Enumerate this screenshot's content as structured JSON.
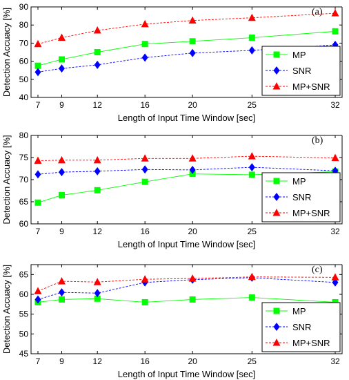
{
  "colors": {
    "MP": "#00ff00",
    "SNR": "#0000ff",
    "MP+SNR": "#ff0000"
  },
  "chart_data": [
    {
      "type": "line",
      "panel_label": "(a)",
      "xlabel": "Length of Input Time Window [sec]",
      "ylabel": "Detection Accuacy [%]",
      "x": [
        7,
        9,
        12,
        16,
        20,
        25,
        32
      ],
      "xticks": [
        7,
        9,
        12,
        16,
        20,
        25,
        32
      ],
      "ylim": [
        40,
        90
      ],
      "yticks": [
        40,
        50,
        60,
        70,
        80,
        90
      ],
      "legend_position": "bottom-right",
      "series": [
        {
          "name": "MP",
          "marker": "square",
          "values": [
            57.5,
            61,
            65,
            69.5,
            71,
            73,
            76.5
          ]
        },
        {
          "name": "SNR",
          "marker": "diamond",
          "values": [
            54,
            56,
            58,
            62,
            64.5,
            66,
            69
          ]
        },
        {
          "name": "MP+SNR",
          "marker": "triangle",
          "values": [
            69.5,
            73,
            77,
            80.5,
            82.5,
            84,
            86.5
          ]
        }
      ]
    },
    {
      "type": "line",
      "panel_label": "(b)",
      "xlabel": "Length of Input Time Window [sec]",
      "ylabel": "Detection Accuacy [%]",
      "x": [
        7,
        9,
        12,
        16,
        20,
        25,
        32
      ],
      "xticks": [
        7,
        9,
        12,
        16,
        20,
        25,
        32
      ],
      "ylim": [
        60,
        80
      ],
      "yticks": [
        60,
        65,
        70,
        75,
        80
      ],
      "legend_position": "bottom-right",
      "series": [
        {
          "name": "MP",
          "marker": "square",
          "values": [
            64.8,
            66.5,
            67.6,
            69.5,
            71.3,
            71.1,
            71.8
          ]
        },
        {
          "name": "SNR",
          "marker": "diamond",
          "values": [
            71.2,
            71.7,
            71.9,
            72.3,
            72.2,
            72.8,
            72.0
          ]
        },
        {
          "name": "MP+SNR",
          "marker": "triangle",
          "values": [
            74.3,
            74.4,
            74.4,
            74.8,
            74.8,
            75.3,
            74.9
          ]
        }
      ]
    },
    {
      "type": "line",
      "panel_label": "(c)",
      "xlabel": "Length of Input Time Window [sec]",
      "ylabel": "Detection Accuacy [%]",
      "x": [
        7,
        9,
        12,
        16,
        20,
        25,
        32
      ],
      "xticks": [
        7,
        9,
        12,
        16,
        20,
        25,
        32
      ],
      "ylim": [
        45,
        67.5
      ],
      "yticks": [
        45,
        50,
        55,
        60,
        65
      ],
      "legend_position": "bottom-right",
      "series": [
        {
          "name": "MP",
          "marker": "square",
          "values": [
            58,
            58.7,
            58.9,
            58,
            58.7,
            59.2,
            58
          ]
        },
        {
          "name": "SNR",
          "marker": "diamond",
          "values": [
            58.7,
            60.5,
            60.3,
            63,
            63.7,
            64.2,
            63
          ]
        },
        {
          "name": "MP+SNR",
          "marker": "triangle",
          "values": [
            60.8,
            63.3,
            63.1,
            63.8,
            64,
            64.4,
            64.3
          ]
        }
      ]
    }
  ]
}
